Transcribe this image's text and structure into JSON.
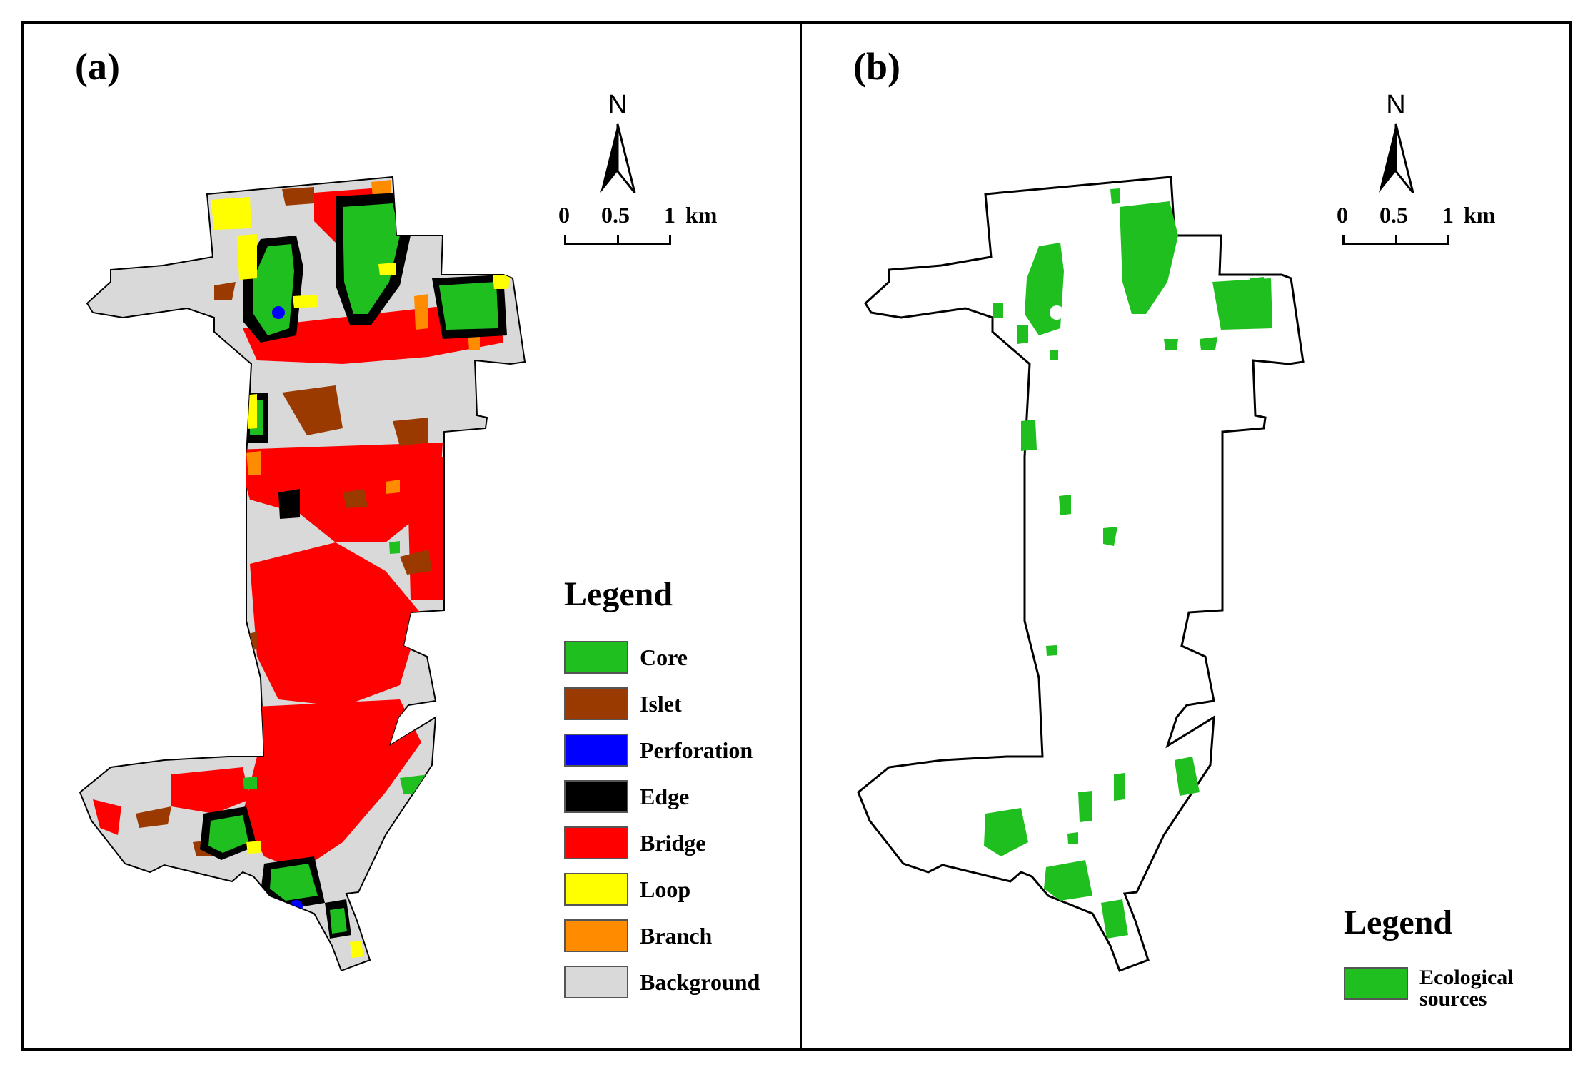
{
  "panels": {
    "a": {
      "label": "(a)",
      "north_label": "N",
      "scale": {
        "ticks": [
          "0",
          "0.5",
          "1"
        ],
        "unit": "km"
      },
      "legend_title": "Legend",
      "legend_items": [
        {
          "label": "Core",
          "color": "#1fbf1f"
        },
        {
          "label": "Islet",
          "color": "#9a3a00"
        },
        {
          "label": "Perforation",
          "color": "#0000ff"
        },
        {
          "label": "Edge",
          "color": "#000000"
        },
        {
          "label": "Bridge",
          "color": "#ff0000"
        },
        {
          "label": "Loop",
          "color": "#ffff00"
        },
        {
          "label": "Branch",
          "color": "#ff8c00"
        },
        {
          "label": "Background",
          "color": "#d9d9d9"
        }
      ]
    },
    "b": {
      "label": "(b)",
      "north_label": "N",
      "scale": {
        "ticks": [
          "0",
          "0.5",
          "1"
        ],
        "unit": "km"
      },
      "legend_title": "Legend",
      "legend_items": [
        {
          "label_line1": "Ecological",
          "label_line2": "sources",
          "color": "#1fbf1f"
        }
      ]
    }
  }
}
